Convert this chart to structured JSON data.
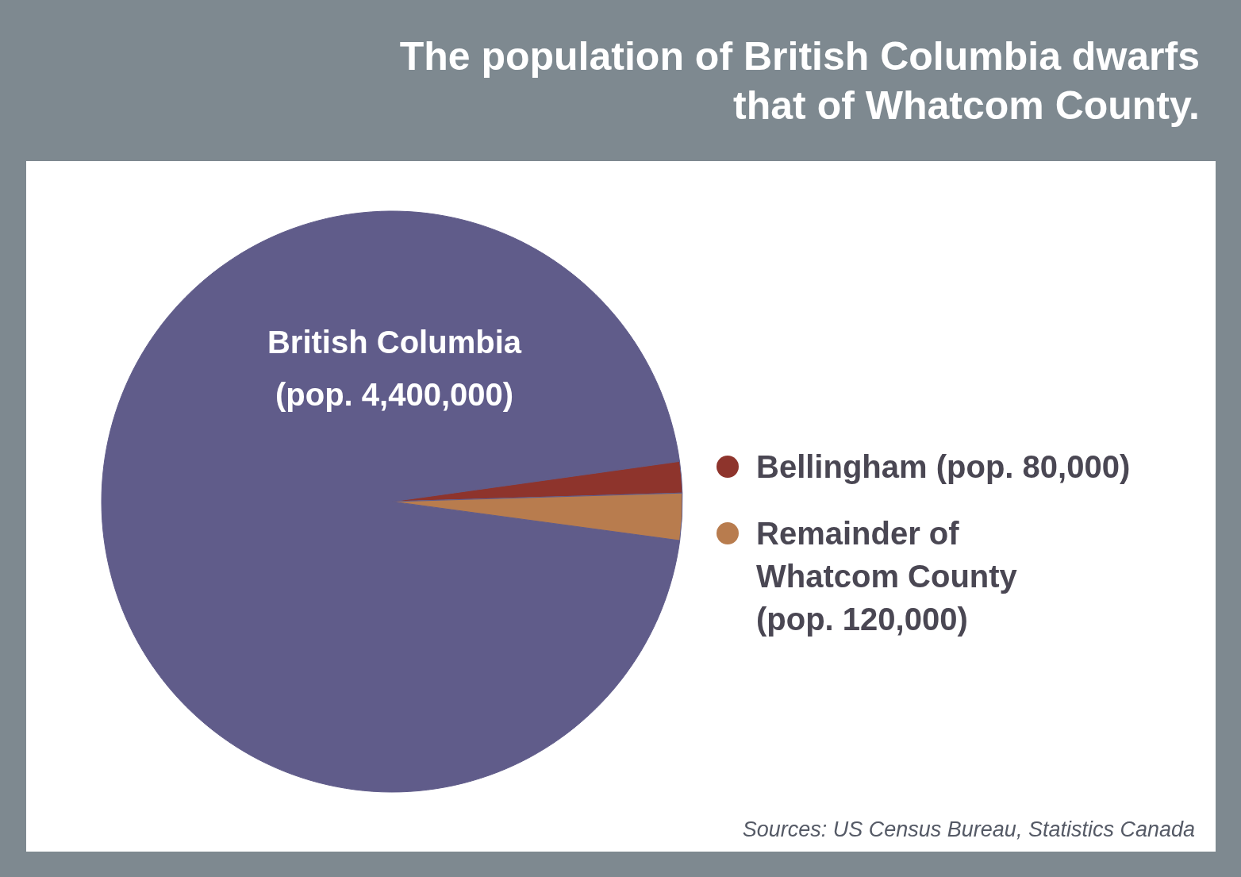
{
  "chart_data": {
    "type": "pie",
    "title": "The population of British Columbia dwarfs that of Whatcom County.",
    "categories": [
      "British Columbia (pop. 4,400,000)",
      "Bellingham (pop. 80,000)",
      "Remainder of Whatcom County (pop. 120,000)"
    ],
    "values": [
      4400000,
      80000,
      120000
    ],
    "colors": [
      "#605c8a",
      "#8e342c",
      "#b87c4e"
    ],
    "legend": "right",
    "annotations": [
      "Sources: US Census Bureau, Statistics Canada"
    ]
  }
}
